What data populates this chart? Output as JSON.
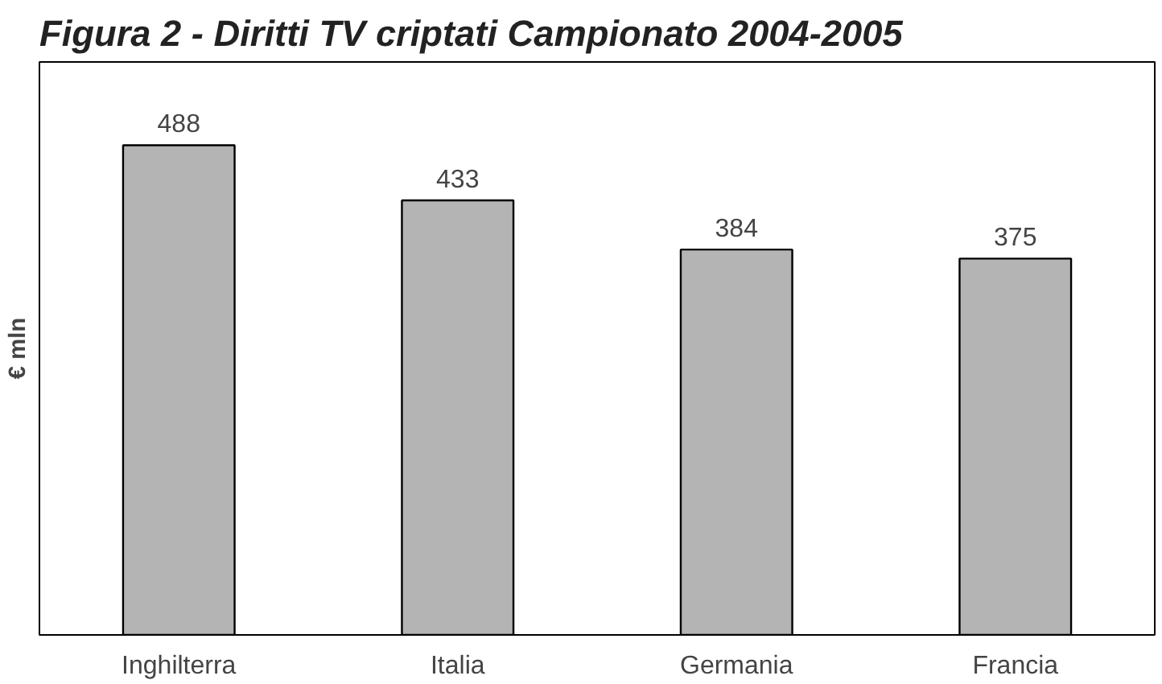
{
  "chart_data": {
    "type": "bar",
    "title": "Figura 2 - Diritti TV criptati Campionato 2004-2005",
    "ylabel": "€ mln",
    "categories": [
      "Inghilterra",
      "Italia",
      "Germania",
      "Francia"
    ],
    "values": [
      488,
      433,
      384,
      375
    ],
    "color": "#b4b4b4",
    "data_labels": true,
    "grid": false
  }
}
